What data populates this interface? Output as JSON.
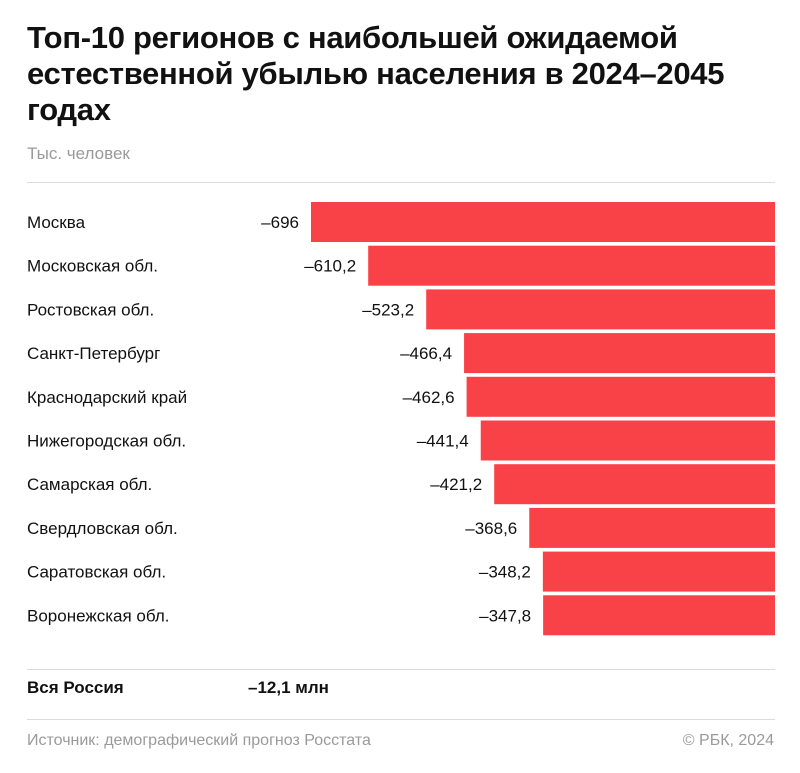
{
  "title": "Топ-10 регионов с наибольшей ожидаемой естественной убылью населения в 2024–2045 годах",
  "subtitle": "Тыс. человек",
  "total": {
    "label": "Вся Россия",
    "value": "–12,1 млн"
  },
  "footer": {
    "source": "Источник: демографический прогноз Росстата",
    "copyright": "© РБК, 2024"
  },
  "colors": {
    "bar": "#f94148",
    "text": "#111111",
    "muted": "#9a9a9a",
    "rule": "#dcdcdc"
  },
  "chart_data": {
    "type": "bar",
    "orientation": "horizontal",
    "title": "Топ-10 регионов с наибольшей ожидаемой естественной убылью населения в 2024–2045 годах",
    "unit": "Тыс. человек",
    "categories": [
      "Москва",
      "Московская обл.",
      "Ростовская обл.",
      "Санкт-Петербург",
      "Краснодарский край",
      "Нижегородская обл.",
      "Самарская обл.",
      "Свердловская обл.",
      "Саратовская обл.",
      "Воронежская обл."
    ],
    "values": [
      -696,
      -610.2,
      -523.2,
      -466.4,
      -462.6,
      -441.4,
      -421.2,
      -368.6,
      -348.2,
      -347.8
    ],
    "value_labels": [
      "–696",
      "–610,2",
      "–523,2",
      "–466,4",
      "–462,6",
      "–441,4",
      "–421,2",
      "–368,6",
      "–348,2",
      "–347,8"
    ],
    "xlim": [
      -696,
      0
    ],
    "grid": false,
    "legend": "none"
  }
}
